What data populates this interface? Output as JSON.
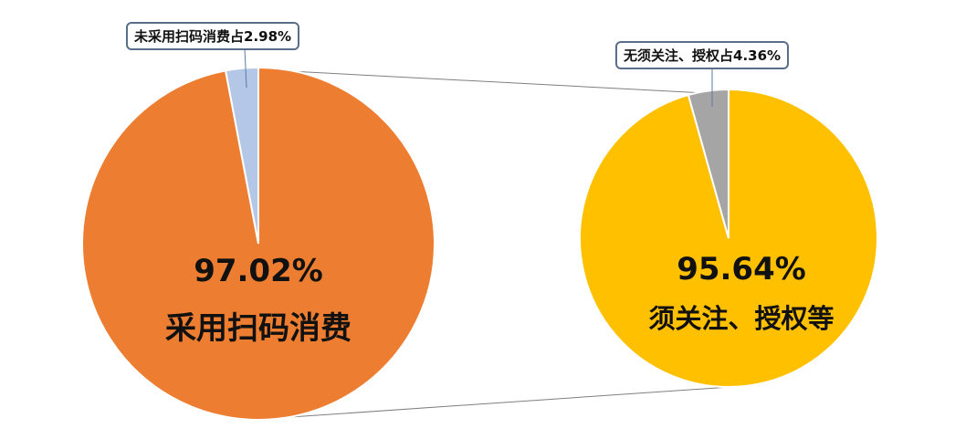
{
  "chart_data": {
    "type": "pie-of-pie",
    "pies": [
      {
        "slices": [
          {
            "label": "采用扫码消费",
            "value": 97.02,
            "color": "#ED7D31",
            "data_label": "97.02%"
          },
          {
            "label": "未采用扫码消费",
            "value": 2.98,
            "color": "#B4C7E7",
            "data_label": "未采用扫码消费占2.98%"
          }
        ]
      },
      {
        "slices": [
          {
            "label": "须关注、授权等",
            "value": 95.64,
            "color": "#FFC000",
            "data_label": "95.64%"
          },
          {
            "label": "无须关注、授权",
            "value": 4.36,
            "color": "#A5A5A5",
            "data_label": "无须关注、授权占4.36%"
          }
        ]
      }
    ]
  },
  "labels": {
    "left_pct": "97.02%",
    "left_name": "采用扫码消费",
    "left_callout": "未采用扫码消费占2.98%",
    "right_pct": "95.64%",
    "right_name": "须关注、授权等",
    "right_callout": "无须关注、授权占4.36%"
  }
}
